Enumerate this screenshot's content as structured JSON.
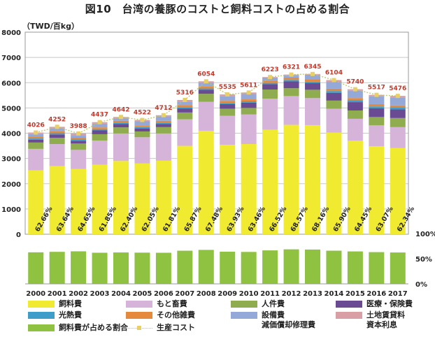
{
  "title": "図10　台湾の養豚のコストと飼料コストの占める割合",
  "unit": "（TWD/百kg）",
  "colors": {
    "feed": "#f0ea31",
    "piglet": "#d6b4da",
    "labor": "#8fac4e",
    "medical": "#6a4b93",
    "utilities": "#3e9ec9",
    "misc": "#e58a3c",
    "equipment": "#95a9d9",
    "land": "#d8a0a5",
    "share": "#8fc240",
    "total_line": "#b8c96a",
    "total_marker": "#e8d066",
    "total_label": "#c0392b"
  },
  "legend": [
    {
      "key": "feed",
      "label": "飼料費"
    },
    {
      "key": "piglet",
      "label": "もと畜費"
    },
    {
      "key": "labor",
      "label": "人件費"
    },
    {
      "key": "medical",
      "label": "医療・保険費"
    },
    {
      "key": "utilities",
      "label": "光熱費"
    },
    {
      "key": "misc",
      "label": "その他雑費"
    },
    {
      "key": "equipment",
      "label": "設備費\n減価償却修理費"
    },
    {
      "key": "land",
      "label": "土地賃貸料\n資本利息"
    },
    {
      "key": "share",
      "label": "飼料費が占める割合"
    },
    {
      "key": "total",
      "label": "生産コスト"
    }
  ],
  "chart_data": {
    "type": "bar",
    "stacked": true,
    "categories": [
      "2000",
      "2001",
      "2002",
      "2003",
      "2004",
      "2005",
      "2006",
      "2007",
      "2008",
      "2009",
      "2010",
      "2011",
      "2012",
      "2013",
      "2014",
      "2015",
      "2016",
      "2017"
    ],
    "ylim": [
      0,
      8000
    ],
    "yticks": [
      "0",
      "1000",
      "2000",
      "3000",
      "4000",
      "5000",
      "6000",
      "7000",
      "8000"
    ],
    "share_ticks": [
      "100%",
      "50%",
      "0%"
    ],
    "series": [
      {
        "key": "feed",
        "name": "飼料費",
        "values": [
          2530,
          2700,
          2580,
          2750,
          2900,
          2800,
          2910,
          3500,
          4090,
          3540,
          3570,
          4140,
          4330,
          4320,
          4020,
          3700,
          3480,
          3410
        ]
      },
      {
        "key": "piglet",
        "name": "もと畜費",
        "values": [
          850,
          870,
          760,
          960,
          1090,
          1040,
          1080,
          1050,
          1150,
          1150,
          1170,
          1230,
          1140,
          1070,
          950,
          870,
          830,
          830
        ]
      },
      {
        "key": "labor",
        "name": "人件費",
        "values": [
          250,
          250,
          250,
          250,
          240,
          230,
          250,
          270,
          320,
          280,
          260,
          360,
          310,
          330,
          320,
          330,
          330,
          360
        ]
      },
      {
        "key": "medical",
        "name": "医療・保険費",
        "values": [
          110,
          130,
          110,
          150,
          140,
          120,
          130,
          160,
          160,
          180,
          210,
          210,
          270,
          260,
          310,
          330,
          350,
          340
        ]
      },
      {
        "key": "utilities",
        "name": "光熱費",
        "values": [
          50,
          50,
          50,
          50,
          50,
          50,
          50,
          50,
          50,
          50,
          50,
          50,
          60,
          60,
          70,
          70,
          70,
          70
        ]
      },
      {
        "key": "misc",
        "name": "その他雑費",
        "values": [
          70,
          70,
          70,
          70,
          70,
          70,
          70,
          80,
          90,
          80,
          80,
          90,
          90,
          90,
          90,
          90,
          90,
          90
        ]
      },
      {
        "key": "equipment",
        "name": "設備費\n減価償却修理費",
        "values": [
          106,
          122,
          108,
          147,
          102,
          162,
          172,
          146,
          134,
          195,
          211,
          123,
          81,
          185,
          274,
          290,
          307,
          316
        ]
      },
      {
        "key": "land",
        "name": "土地賃貸料\n資本利息",
        "values": [
          60,
          60,
          60,
          60,
          50,
          50,
          50,
          60,
          60,
          60,
          60,
          20,
          40,
          30,
          70,
          60,
          60,
          60
        ]
      }
    ],
    "totals": [
      4026,
      4252,
      3988,
      4437,
      4642,
      4522,
      4712,
      5316,
      6054,
      5535,
      5611,
      6223,
      6321,
      6345,
      6104,
      5740,
      5517,
      5476
    ],
    "total_name": "生産コスト",
    "feed_share_labels": [
      "62.66%",
      "63.64%",
      "64.65%",
      "61.85%",
      "62.40%",
      "62.05%",
      "61.81%",
      "65.87%",
      "67.48%",
      "63.93%",
      "63.46%",
      "66.52%",
      "68.57%",
      "68.16%",
      "65.90%",
      "64.45%",
      "63.07%",
      "62.34%"
    ],
    "feed_share_values": [
      62.66,
      63.64,
      64.65,
      61.85,
      62.4,
      62.05,
      61.81,
      65.87,
      67.48,
      63.93,
      63.46,
      66.52,
      68.57,
      68.16,
      65.9,
      64.45,
      63.07,
      62.34
    ],
    "share_ylim": [
      0,
      100
    ]
  }
}
